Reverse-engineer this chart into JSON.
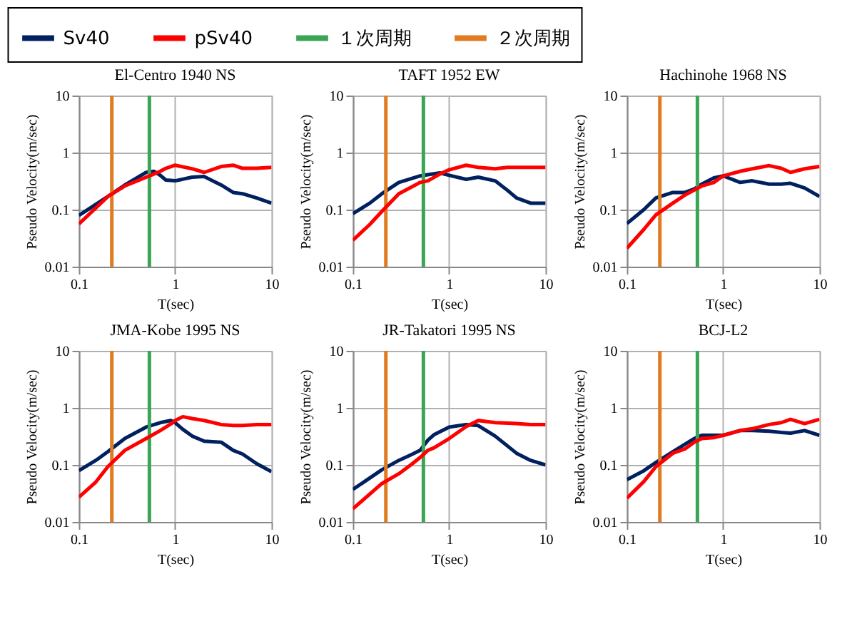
{
  "chart_data": [
    {
      "type": "line",
      "title": "El-Centro 1940 NS",
      "xlabel": "T(sec)",
      "ylabel": "Pseudo Velocity(m/sec)",
      "log": "xy",
      "grid": true,
      "legend": "top",
      "xlim": [
        0.1,
        10
      ],
      "ylim": [
        0.01,
        10
      ],
      "xticks": [
        0.1,
        1,
        10
      ],
      "yticks": [
        0.01,
        0.1,
        1,
        10
      ],
      "x": [
        0.1,
        0.2,
        0.3,
        0.5,
        0.6,
        0.7,
        0.8,
        1,
        1.5,
        2,
        3,
        4,
        5,
        7,
        10
      ],
      "series": [
        {
          "name": "Sv40",
          "color": "#002060",
          "values": [
            0.079,
            0.17,
            0.27,
            0.45,
            0.47,
            0.4,
            0.33,
            0.32,
            0.37,
            0.38,
            0.27,
            0.2,
            0.19,
            0.16,
            0.13
          ]
        },
        {
          "name": "pSv40",
          "color": "#ff0000",
          "values": [
            0.056,
            0.17,
            0.26,
            0.37,
            0.42,
            0.47,
            0.53,
            0.6,
            0.52,
            0.45,
            0.57,
            0.6,
            0.53,
            0.53,
            0.55
          ]
        }
      ],
      "ref_lines": [
        {
          "axis": "x",
          "value": 0.54,
          "label": "１次周期",
          "color": "#3aa655"
        },
        {
          "axis": "x",
          "value": 0.22,
          "label": "２次周期",
          "color": "#e07b20"
        }
      ]
    },
    {
      "type": "line",
      "title": "TAFT 1952 EW",
      "xlabel": "T(sec)",
      "ylabel": "Pseudo Velocity(m/sec)",
      "log": "xy",
      "grid": true,
      "xlim": [
        0.1,
        10
      ],
      "ylim": [
        0.01,
        10
      ],
      "xticks": [
        0.1,
        1,
        10
      ],
      "yticks": [
        0.01,
        0.1,
        1,
        10
      ],
      "x": [
        0.1,
        0.15,
        0.2,
        0.3,
        0.5,
        0.6,
        0.8,
        1,
        1.5,
        2,
        3,
        4,
        5,
        7,
        10
      ],
      "series": [
        {
          "color": "#002060",
          "values": [
            0.085,
            0.13,
            0.19,
            0.3,
            0.39,
            0.41,
            0.44,
            0.4,
            0.34,
            0.37,
            0.32,
            0.22,
            0.16,
            0.13,
            0.13
          ]
        },
        {
          "color": "#ff0000",
          "values": [
            0.029,
            0.055,
            0.093,
            0.19,
            0.3,
            0.32,
            0.42,
            0.5,
            0.6,
            0.55,
            0.52,
            0.55,
            0.55,
            0.55,
            0.55
          ]
        }
      ],
      "ref_lines": [
        {
          "axis": "x",
          "value": 0.54,
          "color": "#3aa655"
        },
        {
          "axis": "x",
          "value": 0.22,
          "color": "#e07b20"
        }
      ]
    },
    {
      "type": "line",
      "title": "Hachinohe 1968 NS",
      "xlabel": "T(sec)",
      "ylabel": "Pseudo Velocity(m/sec)",
      "log": "xy",
      "grid": true,
      "xlim": [
        0.1,
        10
      ],
      "ylim": [
        0.01,
        10
      ],
      "xticks": [
        0.1,
        1,
        10
      ],
      "yticks": [
        0.01,
        0.1,
        1,
        10
      ],
      "x": [
        0.1,
        0.15,
        0.2,
        0.3,
        0.4,
        0.5,
        0.6,
        0.8,
        1,
        1.5,
        2,
        3,
        4,
        5,
        7,
        10
      ],
      "series": [
        {
          "color": "#002060",
          "values": [
            0.057,
            0.1,
            0.16,
            0.2,
            0.2,
            0.23,
            0.28,
            0.36,
            0.39,
            0.3,
            0.32,
            0.28,
            0.28,
            0.29,
            0.24,
            0.17
          ]
        },
        {
          "color": "#ff0000",
          "values": [
            0.021,
            0.045,
            0.081,
            0.13,
            0.18,
            0.22,
            0.26,
            0.3,
            0.39,
            0.47,
            0.52,
            0.59,
            0.53,
            0.45,
            0.52,
            0.57
          ]
        }
      ],
      "ref_lines": [
        {
          "axis": "x",
          "value": 0.54,
          "color": "#3aa655"
        },
        {
          "axis": "x",
          "value": 0.22,
          "color": "#e07b20"
        }
      ]
    },
    {
      "type": "line",
      "title": "JMA-Kobe 1995 NS",
      "xlabel": "T(sec)",
      "ylabel": "Pseudo Velocity(m/sec)",
      "log": "xy",
      "grid": true,
      "xlim": [
        0.1,
        10
      ],
      "ylim": [
        0.01,
        10
      ],
      "xticks": [
        0.1,
        1,
        10
      ],
      "yticks": [
        0.01,
        0.1,
        1,
        10
      ],
      "x": [
        0.1,
        0.15,
        0.2,
        0.3,
        0.5,
        0.7,
        0.9,
        1,
        1.2,
        1.5,
        2,
        3,
        4,
        5,
        7,
        10
      ],
      "series": [
        {
          "color": "#002060",
          "values": [
            0.079,
            0.12,
            0.17,
            0.29,
            0.46,
            0.55,
            0.6,
            0.55,
            0.42,
            0.32,
            0.26,
            0.25,
            0.18,
            0.155,
            0.105,
            0.076
          ]
        },
        {
          "color": "#ff0000",
          "values": [
            0.027,
            0.05,
            0.093,
            0.18,
            0.29,
            0.4,
            0.52,
            0.6,
            0.7,
            0.65,
            0.6,
            0.51,
            0.49,
            0.49,
            0.51,
            0.51
          ]
        }
      ],
      "ref_lines": [
        {
          "axis": "x",
          "value": 0.54,
          "color": "#3aa655"
        },
        {
          "axis": "x",
          "value": 0.22,
          "color": "#e07b20"
        }
      ]
    },
    {
      "type": "line",
      "title": "JR-Takatori 1995 NS",
      "xlabel": "T(sec)",
      "ylabel": "Pseudo Velocity(m/sec)",
      "log": "xy",
      "grid": true,
      "xlim": [
        0.1,
        10
      ],
      "ylim": [
        0.01,
        10
      ],
      "xticks": [
        0.1,
        1,
        10
      ],
      "yticks": [
        0.01,
        0.1,
        1,
        10
      ],
      "x": [
        0.1,
        0.2,
        0.3,
        0.4,
        0.5,
        0.6,
        0.7,
        1,
        1.5,
        2,
        3,
        5,
        7,
        10
      ],
      "series": [
        {
          "color": "#002060",
          "values": [
            0.037,
            0.082,
            0.12,
            0.15,
            0.18,
            0.27,
            0.34,
            0.46,
            0.51,
            0.49,
            0.32,
            0.16,
            0.12,
            0.1
          ]
        },
        {
          "color": "#ff0000",
          "values": [
            0.017,
            0.047,
            0.07,
            0.1,
            0.135,
            0.18,
            0.2,
            0.29,
            0.47,
            0.6,
            0.55,
            0.53,
            0.51,
            0.51
          ]
        }
      ],
      "ref_lines": [
        {
          "axis": "x",
          "value": 0.54,
          "color": "#3aa655"
        },
        {
          "axis": "x",
          "value": 0.22,
          "color": "#e07b20"
        }
      ]
    },
    {
      "type": "line",
      "title": "BCJ-L2",
      "xlabel": "T(sec)",
      "ylabel": "Pseudo Velocity(m/sec)",
      "log": "xy",
      "grid": true,
      "xlim": [
        0.1,
        10
      ],
      "ylim": [
        0.01,
        10
      ],
      "xticks": [
        0.1,
        1,
        10
      ],
      "yticks": [
        0.01,
        0.1,
        1,
        10
      ],
      "x": [
        0.1,
        0.15,
        0.2,
        0.3,
        0.4,
        0.5,
        0.6,
        0.8,
        1,
        1.5,
        2,
        3,
        4,
        5,
        7,
        10
      ],
      "series": [
        {
          "color": "#002060",
          "values": [
            0.055,
            0.079,
            0.11,
            0.17,
            0.23,
            0.29,
            0.33,
            0.33,
            0.33,
            0.4,
            0.4,
            0.39,
            0.37,
            0.36,
            0.4,
            0.33
          ]
        },
        {
          "color": "#ff0000",
          "values": [
            0.026,
            0.051,
            0.093,
            0.16,
            0.19,
            0.25,
            0.29,
            0.3,
            0.33,
            0.4,
            0.43,
            0.51,
            0.55,
            0.63,
            0.53,
            0.63
          ]
        }
      ],
      "ref_lines": [
        {
          "axis": "x",
          "value": 0.54,
          "color": "#3aa655"
        },
        {
          "axis": "x",
          "value": 0.22,
          "color": "#e07b20"
        }
      ]
    }
  ]
}
